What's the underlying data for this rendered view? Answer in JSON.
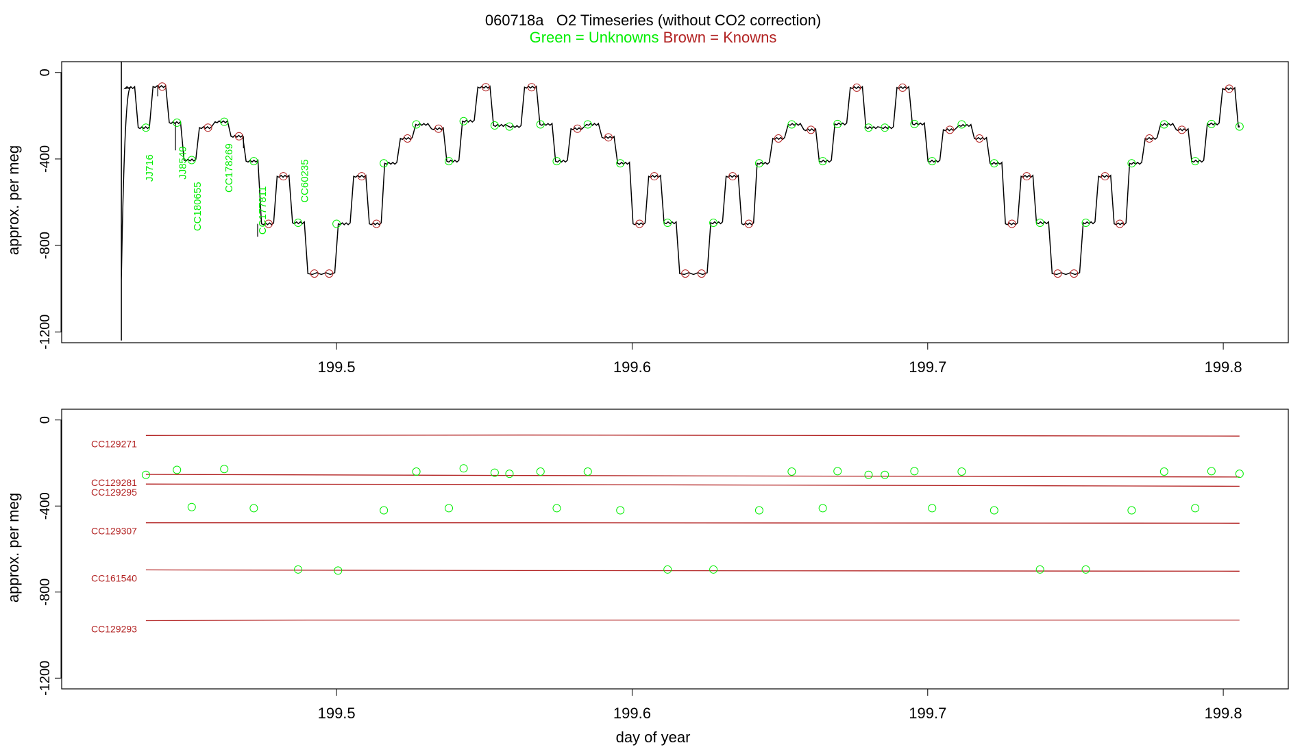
{
  "figure": {
    "run_id": "060718a",
    "title": "O2 Timeseries (without CO2 correction)",
    "subtitle_green": "Green = Unknowns",
    "subtitle_brown": "Brown = Knowns",
    "xlabel": "day of year",
    "colors": {
      "unknown": "#00ee00",
      "known": "#b22222",
      "trace": "#000000"
    }
  },
  "chart_data": [
    {
      "type": "line",
      "ylabel": "approx. per meg",
      "xlim": [
        199.407,
        199.822
      ],
      "ylim": [
        -1250,
        50
      ],
      "xticks": [
        199.5,
        199.6,
        199.7,
        199.8
      ],
      "xtick_labels": [
        "199.5",
        "199.6",
        "199.7",
        "199.8"
      ],
      "yticks": [
        0,
        -400,
        -800,
        -1200
      ],
      "ytick_labels": [
        "0",
        "-400",
        "-800",
        "-1200"
      ],
      "trace_series": {
        "name": "",
        "levels": [
          {
            "x0": 199.4272,
            "x1": 199.4323,
            "y": -70
          },
          {
            "x0": 199.4323,
            "x1": 199.4373,
            "y": -255
          },
          {
            "x0": 199.4373,
            "x1": 199.4428,
            "y": -65
          },
          {
            "x0": 199.4428,
            "x1": 199.4478,
            "y": -232
          },
          {
            "x0": 199.4478,
            "x1": 199.453,
            "y": -405
          },
          {
            "x0": 199.453,
            "x1": 199.4583,
            "y": -255
          },
          {
            "x0": 199.4583,
            "x1": 199.4637,
            "y": -228
          },
          {
            "x0": 199.4637,
            "x1": 199.4688,
            "y": -295
          },
          {
            "x0": 199.4688,
            "x1": 199.474,
            "y": -410
          },
          {
            "x0": 199.474,
            "x1": 199.4793,
            "y": -700
          },
          {
            "x0": 199.4793,
            "x1": 199.4845,
            "y": -480
          },
          {
            "x0": 199.4845,
            "x1": 199.4897,
            "y": -695
          },
          {
            "x0": 199.4897,
            "x1": 199.5,
            "y": -930
          },
          {
            "x0": 199.5,
            "x1": 199.5052,
            "y": -700
          },
          {
            "x0": 199.5052,
            "x1": 199.5105,
            "y": -480
          },
          {
            "x0": 199.5105,
            "x1": 199.5157,
            "y": -700
          },
          {
            "x0": 199.5157,
            "x1": 199.521,
            "y": -420
          },
          {
            "x0": 199.521,
            "x1": 199.5262,
            "y": -305
          },
          {
            "x0": 199.5262,
            "x1": 199.5315,
            "y": -240
          },
          {
            "x0": 199.5315,
            "x1": 199.5367,
            "y": -260
          },
          {
            "x0": 199.5367,
            "x1": 199.542,
            "y": -410
          },
          {
            "x0": 199.542,
            "x1": 199.5472,
            "y": -225
          },
          {
            "x0": 199.5472,
            "x1": 199.5525,
            "y": -68
          },
          {
            "x0": 199.5525,
            "x1": 199.5577,
            "y": -245
          },
          {
            "x0": 199.5577,
            "x1": 199.563,
            "y": -250
          },
          {
            "x0": 199.563,
            "x1": 199.5682,
            "y": -68
          },
          {
            "x0": 199.5682,
            "x1": 199.5735,
            "y": -240
          },
          {
            "x0": 199.5735,
            "x1": 199.5787,
            "y": -410
          },
          {
            "x0": 199.5787,
            "x1": 199.584,
            "y": -260
          },
          {
            "x0": 199.584,
            "x1": 199.5892,
            "y": -240
          },
          {
            "x0": 199.5892,
            "x1": 199.5945,
            "y": -300
          },
          {
            "x0": 199.5945,
            "x1": 199.5997,
            "y": -420
          },
          {
            "x0": 199.5997,
            "x1": 199.605,
            "y": -700
          },
          {
            "x0": 199.605,
            "x1": 199.6102,
            "y": -480
          },
          {
            "x0": 199.6102,
            "x1": 199.6155,
            "y": -695
          },
          {
            "x0": 199.6155,
            "x1": 199.626,
            "y": -930
          },
          {
            "x0": 199.626,
            "x1": 199.6312,
            "y": -695
          },
          {
            "x0": 199.6312,
            "x1": 199.6365,
            "y": -480
          },
          {
            "x0": 199.6365,
            "x1": 199.6417,
            "y": -700
          },
          {
            "x0": 199.6417,
            "x1": 199.647,
            "y": -420
          },
          {
            "x0": 199.647,
            "x1": 199.6522,
            "y": -305
          },
          {
            "x0": 199.6522,
            "x1": 199.6575,
            "y": -240
          },
          {
            "x0": 199.6575,
            "x1": 199.6627,
            "y": -265
          },
          {
            "x0": 199.6627,
            "x1": 199.668,
            "y": -410
          },
          {
            "x0": 199.668,
            "x1": 199.6732,
            "y": -238
          },
          {
            "x0": 199.6732,
            "x1": 199.6785,
            "y": -70
          },
          {
            "x0": 199.6785,
            "x1": 199.6837,
            "y": -255
          },
          {
            "x0": 199.6837,
            "x1": 199.689,
            "y": -255
          },
          {
            "x0": 199.689,
            "x1": 199.6942,
            "y": -70
          },
          {
            "x0": 199.6942,
            "x1": 199.6995,
            "y": -238
          },
          {
            "x0": 199.6995,
            "x1": 199.7047,
            "y": -410
          },
          {
            "x0": 199.7047,
            "x1": 199.71,
            "y": -265
          },
          {
            "x0": 199.71,
            "x1": 199.7152,
            "y": -245
          },
          {
            "x0": 199.7152,
            "x1": 199.7205,
            "y": -305
          },
          {
            "x0": 199.7205,
            "x1": 199.7257,
            "y": -420
          },
          {
            "x0": 199.7257,
            "x1": 199.731,
            "y": -700
          },
          {
            "x0": 199.731,
            "x1": 199.7362,
            "y": -480
          },
          {
            "x0": 199.7362,
            "x1": 199.7415,
            "y": -695
          },
          {
            "x0": 199.7415,
            "x1": 199.752,
            "y": -930
          },
          {
            "x0": 199.752,
            "x1": 199.7572,
            "y": -695
          },
          {
            "x0": 199.7572,
            "x1": 199.7625,
            "y": -480
          },
          {
            "x0": 199.7625,
            "x1": 199.7677,
            "y": -700
          },
          {
            "x0": 199.7677,
            "x1": 199.773,
            "y": -420
          },
          {
            "x0": 199.773,
            "x1": 199.7782,
            "y": -305
          },
          {
            "x0": 199.7782,
            "x1": 199.7835,
            "y": -240
          },
          {
            "x0": 199.7835,
            "x1": 199.7887,
            "y": -265
          },
          {
            "x0": 199.7887,
            "x1": 199.794,
            "y": -410
          },
          {
            "x0": 199.794,
            "x1": 199.7992,
            "y": -238
          },
          {
            "x0": 199.7992,
            "x1": 199.8045,
            "y": -75
          },
          {
            "x0": 199.8045,
            "x1": 199.806,
            "y": -250
          }
        ]
      },
      "unknown_points": [
        {
          "x": 199.4355,
          "y": -255
        },
        {
          "x": 199.446,
          "y": -232
        },
        {
          "x": 199.451,
          "y": -405
        },
        {
          "x": 199.462,
          "y": -228
        },
        {
          "x": 199.472,
          "y": -410
        },
        {
          "x": 199.487,
          "y": -695
        },
        {
          "x": 199.5,
          "y": -700
        },
        {
          "x": 199.516,
          "y": -420
        },
        {
          "x": 199.527,
          "y": -240
        },
        {
          "x": 199.538,
          "y": -410
        },
        {
          "x": 199.543,
          "y": -225
        },
        {
          "x": 199.5535,
          "y": -245
        },
        {
          "x": 199.5585,
          "y": -250
        },
        {
          "x": 199.569,
          "y": -240
        },
        {
          "x": 199.5745,
          "y": -410
        },
        {
          "x": 199.585,
          "y": -240
        },
        {
          "x": 199.596,
          "y": -420
        },
        {
          "x": 199.612,
          "y": -695
        },
        {
          "x": 199.6275,
          "y": -695
        },
        {
          "x": 199.643,
          "y": -420
        },
        {
          "x": 199.654,
          "y": -240
        },
        {
          "x": 199.6645,
          "y": -410
        },
        {
          "x": 199.6695,
          "y": -238
        },
        {
          "x": 199.68,
          "y": -255
        },
        {
          "x": 199.6855,
          "y": -255
        },
        {
          "x": 199.6955,
          "y": -238
        },
        {
          "x": 199.7015,
          "y": -410
        },
        {
          "x": 199.7115,
          "y": -240
        },
        {
          "x": 199.7225,
          "y": -420
        },
        {
          "x": 199.738,
          "y": -695
        },
        {
          "x": 199.7535,
          "y": -695
        },
        {
          "x": 199.769,
          "y": -420
        },
        {
          "x": 199.78,
          "y": -240
        },
        {
          "x": 199.7905,
          "y": -410
        },
        {
          "x": 199.796,
          "y": -238
        },
        {
          "x": 199.8055,
          "y": -250
        }
      ],
      "known_points": [
        {
          "x": 199.441,
          "y": -65
        },
        {
          "x": 199.4565,
          "y": -255
        },
        {
          "x": 199.467,
          "y": -295
        },
        {
          "x": 199.477,
          "y": -700
        },
        {
          "x": 199.482,
          "y": -480
        },
        {
          "x": 199.4925,
          "y": -930
        },
        {
          "x": 199.4975,
          "y": -930
        },
        {
          "x": 199.5085,
          "y": -480
        },
        {
          "x": 199.5135,
          "y": -700
        },
        {
          "x": 199.524,
          "y": -305
        },
        {
          "x": 199.5345,
          "y": -260
        },
        {
          "x": 199.5505,
          "y": -68
        },
        {
          "x": 199.566,
          "y": -68
        },
        {
          "x": 199.5815,
          "y": -260
        },
        {
          "x": 199.592,
          "y": -300
        },
        {
          "x": 199.6025,
          "y": -700
        },
        {
          "x": 199.6075,
          "y": -480
        },
        {
          "x": 199.618,
          "y": -930
        },
        {
          "x": 199.6235,
          "y": -930
        },
        {
          "x": 199.634,
          "y": -480
        },
        {
          "x": 199.6395,
          "y": -700
        },
        {
          "x": 199.6495,
          "y": -305
        },
        {
          "x": 199.6605,
          "y": -265
        },
        {
          "x": 199.676,
          "y": -70
        },
        {
          "x": 199.6915,
          "y": -70
        },
        {
          "x": 199.7075,
          "y": -265
        },
        {
          "x": 199.7175,
          "y": -305
        },
        {
          "x": 199.7285,
          "y": -700
        },
        {
          "x": 199.7335,
          "y": -480
        },
        {
          "x": 199.744,
          "y": -930
        },
        {
          "x": 199.7495,
          "y": -930
        },
        {
          "x": 199.76,
          "y": -480
        },
        {
          "x": 199.765,
          "y": -700
        },
        {
          "x": 199.775,
          "y": -305
        },
        {
          "x": 199.786,
          "y": -265
        },
        {
          "x": 199.802,
          "y": -75
        }
      ],
      "annotations": [
        {
          "text": "JJ716",
          "x": 199.4378,
          "y": -442
        },
        {
          "text": "JJ8549",
          "x": 199.4491,
          "y": -418
        },
        {
          "text": "CC180655",
          "x": 199.4541,
          "y": -620
        },
        {
          "text": "CC178269",
          "x": 199.4647,
          "y": -442
        },
        {
          "text": "CC177811",
          "x": 199.4761,
          "y": -638
        },
        {
          "text": "CC60235",
          "x": 199.4903,
          "y": -502
        }
      ]
    },
    {
      "type": "line",
      "ylabel": "approx. per meg",
      "xlim": [
        199.407,
        199.822
      ],
      "ylim": [
        -1250,
        50
      ],
      "xticks": [
        199.5,
        199.6,
        199.7,
        199.8
      ],
      "xtick_labels": [
        "199.5",
        "199.6",
        "199.7",
        "199.8"
      ],
      "yticks": [
        0,
        -400,
        -800,
        -1200
      ],
      "ytick_labels": [
        "0",
        "-400",
        "-800",
        "-1200"
      ],
      "series": [
        {
          "name": "CC129271",
          "x": [
            199.4355,
            199.565,
            199.8055
          ],
          "values": [
            -72,
            -70,
            -75
          ]
        },
        {
          "name": "CC129281",
          "x": [
            199.4355,
            199.565,
            199.8055
          ],
          "values": [
            -253,
            -258,
            -265
          ]
        },
        {
          "name": "CC129295",
          "x": [
            199.4355,
            199.565,
            199.8055
          ],
          "values": [
            -298,
            -300,
            -308
          ]
        },
        {
          "name": "CC129307",
          "x": [
            199.4355,
            199.565,
            199.8055
          ],
          "values": [
            -478,
            -478,
            -480
          ]
        },
        {
          "name": "CC161540",
          "x": [
            199.4355,
            199.565,
            199.8055
          ],
          "values": [
            -697,
            -700,
            -703
          ]
        },
        {
          "name": "CC129293",
          "x": [
            199.4355,
            199.49,
            199.8055
          ],
          "values": [
            -933,
            -930,
            -930
          ]
        }
      ],
      "unknown_points": [
        {
          "x": 199.4355,
          "y": -255
        },
        {
          "x": 199.446,
          "y": -232
        },
        {
          "x": 199.451,
          "y": -405
        },
        {
          "x": 199.462,
          "y": -228
        },
        {
          "x": 199.472,
          "y": -410
        },
        {
          "x": 199.487,
          "y": -695
        },
        {
          "x": 199.5005,
          "y": -700
        },
        {
          "x": 199.516,
          "y": -420
        },
        {
          "x": 199.527,
          "y": -240
        },
        {
          "x": 199.538,
          "y": -410
        },
        {
          "x": 199.543,
          "y": -225
        },
        {
          "x": 199.5535,
          "y": -245
        },
        {
          "x": 199.5585,
          "y": -250
        },
        {
          "x": 199.569,
          "y": -240
        },
        {
          "x": 199.5745,
          "y": -410
        },
        {
          "x": 199.585,
          "y": -240
        },
        {
          "x": 199.596,
          "y": -420
        },
        {
          "x": 199.612,
          "y": -695
        },
        {
          "x": 199.6275,
          "y": -695
        },
        {
          "x": 199.643,
          "y": -420
        },
        {
          "x": 199.654,
          "y": -240
        },
        {
          "x": 199.6645,
          "y": -410
        },
        {
          "x": 199.6695,
          "y": -238
        },
        {
          "x": 199.68,
          "y": -255
        },
        {
          "x": 199.6855,
          "y": -255
        },
        {
          "x": 199.6955,
          "y": -238
        },
        {
          "x": 199.7015,
          "y": -410
        },
        {
          "x": 199.7115,
          "y": -240
        },
        {
          "x": 199.7225,
          "y": -420
        },
        {
          "x": 199.738,
          "y": -695
        },
        {
          "x": 199.7535,
          "y": -695
        },
        {
          "x": 199.769,
          "y": -420
        },
        {
          "x": 199.78,
          "y": -240
        },
        {
          "x": 199.7905,
          "y": -410
        },
        {
          "x": 199.796,
          "y": -238
        },
        {
          "x": 199.8055,
          "y": -250
        }
      ]
    }
  ]
}
